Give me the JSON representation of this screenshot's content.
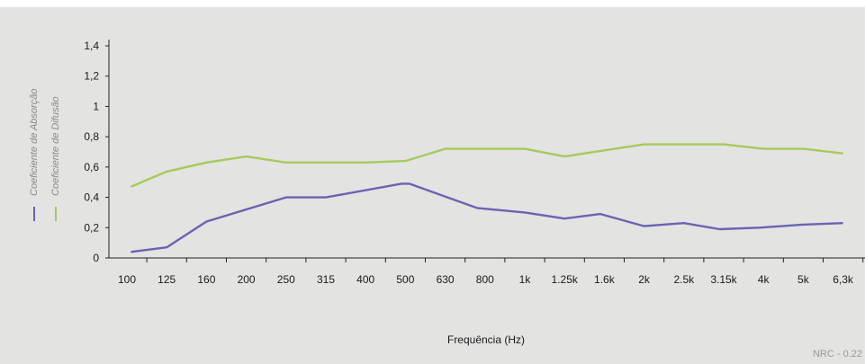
{
  "chart_data": {
    "type": "line",
    "categories": [
      "100",
      "125",
      "160",
      "200",
      "250",
      "315",
      "400",
      "500",
      "630",
      "800",
      "1k",
      "1.25k",
      "1.6k",
      "2k",
      "2.5k",
      "3.15k",
      "4k",
      "5k",
      "6,3k"
    ],
    "y_ticks": [
      "0",
      "0,2",
      "0,4",
      "0,6",
      "0,8",
      "1",
      "1,2",
      "1,4"
    ],
    "ylim": [
      0,
      1.5
    ],
    "xlabel": "Frequência (Hz)",
    "ylabel": "",
    "grid": false,
    "legend_position": "left, rotated vertical",
    "footnote": "NRC - 0.22",
    "series": [
      {
        "name": "Coeficiente de Absorção",
        "color": "#6a63b0",
        "x": [
          0.1,
          1.0,
          2.0,
          4.0,
          5.0,
          6.9,
          7.1,
          8.8,
          10.0,
          11.0,
          11.9,
          13.0,
          14.0,
          14.9,
          15.9,
          17.0,
          18.0
        ],
        "y": [
          0.04,
          0.07,
          0.24,
          0.4,
          0.4,
          0.49,
          0.49,
          0.33,
          0.3,
          0.26,
          0.29,
          0.21,
          0.23,
          0.19,
          0.2,
          0.22,
          0.23
        ]
      },
      {
        "name": "Coeficiente de Difusão",
        "color": "#a6ca5a",
        "x": [
          0.1,
          1.0,
          2.0,
          3.0,
          4.0,
          5.0,
          6.0,
          7.0,
          8.0,
          9.0,
          10.0,
          11.0,
          12.0,
          13.0,
          14.0,
          15.0,
          16.0,
          17.0,
          18.0
        ],
        "y": [
          0.47,
          0.57,
          0.63,
          0.67,
          0.63,
          0.63,
          0.63,
          0.64,
          0.72,
          0.72,
          0.72,
          0.67,
          0.71,
          0.75,
          0.75,
          0.75,
          0.72,
          0.72,
          0.69
        ]
      }
    ]
  }
}
